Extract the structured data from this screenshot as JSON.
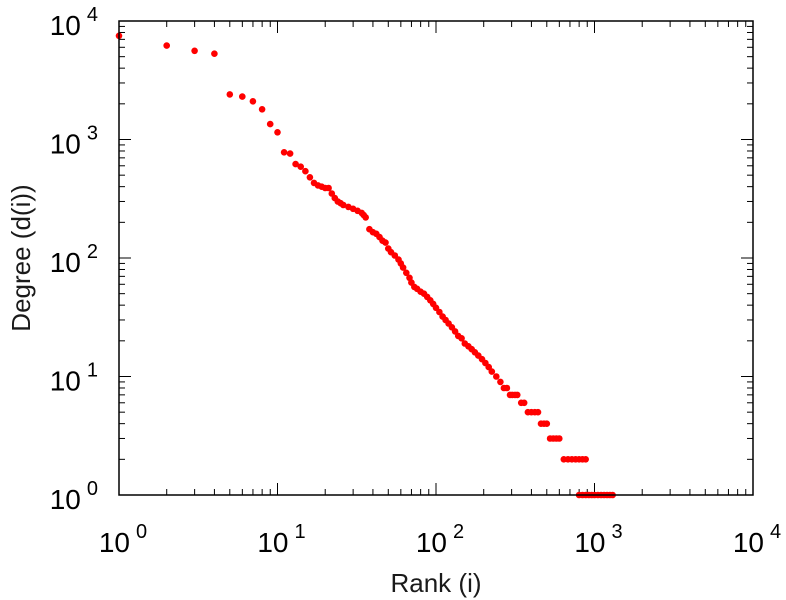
{
  "chart_data": {
    "type": "scatter",
    "title": "",
    "xlabel": "Rank (i)",
    "ylabel": "Degree (d(i))",
    "xscale": "log",
    "yscale": "log",
    "xlim": [
      1,
      10000
    ],
    "ylim": [
      1,
      10000
    ],
    "x_ticks": [
      {
        "base": "10",
        "exp": "0"
      },
      {
        "base": "10",
        "exp": "1"
      },
      {
        "base": "10",
        "exp": "2"
      },
      {
        "base": "10",
        "exp": "3"
      },
      {
        "base": "10",
        "exp": "4"
      }
    ],
    "y_ticks": [
      {
        "base": "10",
        "exp": "0"
      },
      {
        "base": "10",
        "exp": "1"
      },
      {
        "base": "10",
        "exp": "2"
      },
      {
        "base": "10",
        "exp": "3"
      },
      {
        "base": "10",
        "exp": "4"
      }
    ],
    "marker_color": "#ff0000",
    "series": [
      {
        "name": "degree",
        "points": [
          [
            1,
            7500
          ],
          [
            2,
            6200
          ],
          [
            3,
            5600
          ],
          [
            4,
            5300
          ],
          [
            5,
            2400
          ],
          [
            6,
            2300
          ],
          [
            7,
            2100
          ],
          [
            8,
            1800
          ],
          [
            9,
            1350
          ],
          [
            10,
            1150
          ],
          [
            11,
            780
          ],
          [
            12,
            760
          ],
          [
            13,
            620
          ],
          [
            14,
            590
          ],
          [
            15,
            540
          ],
          [
            16,
            480
          ],
          [
            17,
            430
          ],
          [
            18,
            410
          ],
          [
            19,
            400
          ],
          [
            20,
            390
          ],
          [
            21,
            390
          ],
          [
            22,
            350
          ],
          [
            23,
            320
          ],
          [
            24,
            300
          ],
          [
            25,
            290
          ],
          [
            26,
            280
          ],
          [
            28,
            270
          ],
          [
            30,
            260
          ],
          [
            32,
            250
          ],
          [
            34,
            240
          ],
          [
            35,
            230
          ],
          [
            36,
            220
          ],
          [
            38,
            175
          ],
          [
            40,
            165
          ],
          [
            42,
            160
          ],
          [
            44,
            150
          ],
          [
            46,
            140
          ],
          [
            48,
            135
          ],
          [
            50,
            120
          ],
          [
            52,
            112
          ],
          [
            55,
            105
          ],
          [
            58,
            97
          ],
          [
            60,
            90
          ],
          [
            62,
            83
          ],
          [
            65,
            75
          ],
          [
            68,
            68
          ],
          [
            70,
            62
          ],
          [
            73,
            57
          ],
          [
            76,
            55
          ],
          [
            80,
            52
          ],
          [
            84,
            50
          ],
          [
            88,
            47
          ],
          [
            92,
            44
          ],
          [
            96,
            41
          ],
          [
            100,
            38
          ],
          [
            105,
            35
          ],
          [
            110,
            32
          ],
          [
            115,
            30
          ],
          [
            120,
            28
          ],
          [
            126,
            26
          ],
          [
            132,
            24
          ],
          [
            138,
            22
          ],
          [
            145,
            21
          ],
          [
            152,
            19
          ],
          [
            160,
            18
          ],
          [
            168,
            17
          ],
          [
            176,
            16
          ],
          [
            185,
            15
          ],
          [
            195,
            14
          ],
          [
            205,
            13
          ],
          [
            215,
            12
          ],
          [
            225,
            11
          ],
          [
            240,
            10
          ],
          [
            255,
            9
          ],
          [
            268,
            8
          ],
          [
            280,
            8
          ],
          [
            293,
            7
          ],
          [
            303,
            7
          ],
          [
            315,
            7
          ],
          [
            326,
            7
          ],
          [
            345,
            6
          ],
          [
            360,
            6
          ],
          [
            380,
            5
          ],
          [
            400,
            5
          ],
          [
            420,
            5
          ],
          [
            440,
            5
          ],
          [
            460,
            4
          ],
          [
            480,
            4
          ],
          [
            500,
            4
          ],
          [
            525,
            3
          ],
          [
            550,
            3
          ],
          [
            575,
            3
          ],
          [
            600,
            3
          ],
          [
            640,
            2
          ],
          [
            680,
            2
          ],
          [
            720,
            2
          ],
          [
            760,
            2
          ],
          [
            800,
            2
          ],
          [
            840,
            2
          ],
          [
            880,
            2
          ],
          [
            800,
            1
          ],
          [
            840,
            1
          ],
          [
            880,
            1
          ],
          [
            920,
            1
          ],
          [
            960,
            1
          ],
          [
            1000,
            1
          ],
          [
            1050,
            1
          ],
          [
            1100,
            1
          ],
          [
            1150,
            1
          ],
          [
            1200,
            1
          ],
          [
            1250,
            1
          ],
          [
            1300,
            1
          ]
        ]
      }
    ]
  }
}
